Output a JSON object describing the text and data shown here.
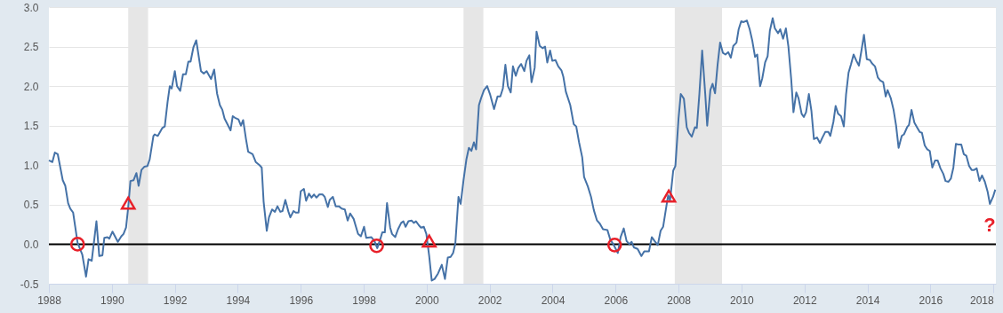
{
  "chart_data": {
    "type": "line",
    "xlim": [
      1988,
      2018.08
    ],
    "ylim": [
      -0.5,
      3.0
    ],
    "xticks": [
      1988,
      1990,
      1992,
      1994,
      1996,
      1998,
      2000,
      2002,
      2004,
      2006,
      2008,
      2010,
      2012,
      2014,
      2016,
      2018
    ],
    "yticks": [
      {
        "value": -0.5,
        "label": "-0.5"
      },
      {
        "value": 0,
        "label": "0.0"
      },
      {
        "value": 0.5,
        "label": "0.5"
      },
      {
        "value": 1,
        "label": "1.0"
      },
      {
        "value": 1.5,
        "label": "1.5"
      },
      {
        "value": 2,
        "label": "2.0"
      },
      {
        "value": 2.5,
        "label": "2.5"
      },
      {
        "value": 3,
        "label": "3.0"
      }
    ],
    "grid": "y",
    "series": [
      {
        "type": "line",
        "color": "#4572a7",
        "x": [
          1988.0,
          1988.11,
          1988.19,
          1988.28,
          1988.44,
          1988.52,
          1988.61,
          1988.68,
          1988.77,
          1988.91,
          1989.06,
          1989.18,
          1989.26,
          1989.36,
          1989.51,
          1989.6,
          1989.7,
          1989.76,
          1989.86,
          1989.92,
          1990.02,
          1990.19,
          1990.3,
          1990.37,
          1990.45,
          1990.52,
          1990.59,
          1990.69,
          1990.78,
          1990.85,
          1990.94,
          1991.03,
          1991.13,
          1991.2,
          1991.32,
          1991.36,
          1991.46,
          1991.6,
          1991.68,
          1991.77,
          1991.84,
          1991.9,
          1992.0,
          1992.07,
          1992.17,
          1992.26,
          1992.35,
          1992.43,
          1992.5,
          1992.59,
          1992.68,
          1992.83,
          1992.92,
          1993.01,
          1993.15,
          1993.25,
          1993.34,
          1993.43,
          1993.51,
          1993.58,
          1993.67,
          1993.77,
          1993.84,
          1993.91,
          1994.02,
          1994.1,
          1994.17,
          1994.26,
          1994.33,
          1994.47,
          1994.57,
          1994.69,
          1994.76,
          1994.82,
          1994.92,
          1994.99,
          1995.09,
          1995.18,
          1995.26,
          1995.35,
          1995.42,
          1995.51,
          1995.61,
          1995.67,
          1995.77,
          1995.84,
          1995.93,
          1996.0,
          1996.1,
          1996.17,
          1996.26,
          1996.34,
          1996.42,
          1996.5,
          1996.59,
          1996.69,
          1996.76,
          1996.86,
          1996.92,
          1997.02,
          1997.11,
          1997.21,
          1997.3,
          1997.4,
          1997.49,
          1997.57,
          1997.68,
          1997.82,
          1997.91,
          1998.01,
          1998.08,
          1998.24,
          1998.34,
          1998.43,
          1998.53,
          1998.59,
          1998.67,
          1998.74,
          1998.84,
          1998.9,
          1999.0,
          1999.09,
          1999.19,
          1999.26,
          1999.33,
          1999.42,
          1999.52,
          1999.59,
          1999.66,
          1999.75,
          1999.82,
          1999.91,
          1999.99,
          2000.08,
          2000.16,
          2000.25,
          2000.36,
          2000.48,
          2000.58,
          2000.67,
          2000.76,
          2000.84,
          2000.91,
          2001.01,
          2001.08,
          2001.17,
          2001.26,
          2001.34,
          2001.42,
          2001.5,
          2001.57,
          2001.66,
          2001.73,
          2001.82,
          2001.92,
          2002.01,
          2002.14,
          2002.25,
          2002.34,
          2002.42,
          2002.5,
          2002.58,
          2002.67,
          2002.74,
          2002.83,
          2002.91,
          2003.0,
          2003.1,
          2003.17,
          2003.26,
          2003.33,
          2003.43,
          2003.49,
          2003.59,
          2003.68,
          2003.76,
          2003.83,
          2003.92,
          2003.99,
          2004.09,
          2004.18,
          2004.28,
          2004.34,
          2004.42,
          2004.56,
          2004.67,
          2004.75,
          2004.84,
          2004.94,
          2005.0,
          2005.12,
          2005.22,
          2005.31,
          2005.41,
          2005.5,
          2005.6,
          2005.74,
          2005.83,
          2005.93,
          2006.07,
          2006.16,
          2006.26,
          2006.35,
          2006.44,
          2006.51,
          2006.58,
          2006.7,
          2006.82,
          2006.91,
          2007.06,
          2007.15,
          2007.24,
          2007.34,
          2007.43,
          2007.51,
          2007.57,
          2007.67,
          2007.73,
          2007.83,
          2007.9,
          2008.0,
          2008.07,
          2008.17,
          2008.26,
          2008.33,
          2008.42,
          2008.52,
          2008.58,
          2008.66,
          2008.75,
          2008.85,
          2008.91,
          2009.01,
          2009.08,
          2009.16,
          2009.24,
          2009.32,
          2009.41,
          2009.49,
          2009.58,
          2009.66,
          2009.74,
          2009.84,
          2009.91,
          2009.99,
          2010.07,
          2010.17,
          2010.26,
          2010.34,
          2010.43,
          2010.5,
          2010.59,
          2010.66,
          2010.75,
          2010.83,
          2010.9,
          2010.99,
          2011.06,
          2011.16,
          2011.23,
          2011.32,
          2011.41,
          2011.49,
          2011.58,
          2011.65,
          2011.74,
          2011.81,
          2011.91,
          2011.98,
          2012.05,
          2012.14,
          2012.22,
          2012.3,
          2012.4,
          2012.49,
          2012.57,
          2012.66,
          2012.76,
          2012.82,
          2012.92,
          2012.99,
          2013.07,
          2013.16,
          2013.25,
          2013.32,
          2013.4,
          2013.48,
          2013.56,
          2013.65,
          2013.73,
          2013.81,
          2013.89,
          2013.98,
          2014.08,
          2014.14,
          2014.24,
          2014.33,
          2014.41,
          2014.5,
          2014.58,
          2014.64,
          2014.74,
          2014.83,
          2014.91,
          2014.99,
          2015.09,
          2015.16,
          2015.26,
          2015.32,
          2015.4,
          2015.49,
          2015.59,
          2015.66,
          2015.73,
          2015.82,
          2015.9,
          2015.98,
          2016.06,
          2016.15,
          2016.23,
          2016.32,
          2016.41,
          2016.48,
          2016.57,
          2016.65,
          2016.73,
          2016.81,
          2016.9,
          2016.98,
          2017.06,
          2017.14,
          2017.23,
          2017.31,
          2017.39,
          2017.47,
          2017.56,
          2017.64,
          2017.73,
          2017.82,
          2017.89,
          2017.99,
          2018.06
        ],
        "values": [
          1.06,
          1.04,
          1.16,
          1.14,
          0.81,
          0.74,
          0.52,
          0.45,
          0.4,
          0.02,
          -0.13,
          -0.41,
          -0.19,
          -0.21,
          0.29,
          -0.15,
          -0.14,
          0.08,
          0.09,
          0.07,
          0.16,
          0.03,
          0.1,
          0.13,
          0.21,
          0.47,
          0.8,
          0.81,
          0.9,
          0.74,
          0.94,
          0.98,
          0.99,
          1.07,
          1.37,
          1.39,
          1.37,
          1.47,
          1.49,
          1.8,
          2.0,
          1.97,
          2.19,
          2.0,
          1.94,
          2.15,
          2.15,
          2.31,
          2.31,
          2.49,
          2.58,
          2.19,
          2.16,
          2.19,
          2.09,
          2.21,
          1.91,
          1.76,
          1.7,
          1.59,
          1.52,
          1.44,
          1.62,
          1.6,
          1.58,
          1.5,
          1.57,
          1.33,
          1.17,
          1.14,
          1.04,
          1.0,
          0.97,
          0.54,
          0.17,
          0.34,
          0.44,
          0.41,
          0.48,
          0.41,
          0.42,
          0.56,
          0.41,
          0.34,
          0.42,
          0.4,
          0.4,
          0.67,
          0.7,
          0.55,
          0.64,
          0.59,
          0.63,
          0.59,
          0.63,
          0.63,
          0.6,
          0.47,
          0.56,
          0.6,
          0.48,
          0.48,
          0.45,
          0.44,
          0.3,
          0.39,
          0.32,
          0.13,
          0.1,
          0.22,
          0.08,
          0.09,
          0.04,
          -0.05,
          0.07,
          0.15,
          0.15,
          0.52,
          0.21,
          0.13,
          0.09,
          0.19,
          0.27,
          0.29,
          0.22,
          0.29,
          0.3,
          0.27,
          0.29,
          0.24,
          0.21,
          0.22,
          0.13,
          -0.15,
          -0.46,
          -0.44,
          -0.37,
          -0.26,
          -0.44,
          -0.17,
          -0.16,
          -0.11,
          0.01,
          0.6,
          0.51,
          0.81,
          1.07,
          1.22,
          1.18,
          1.29,
          1.2,
          1.76,
          1.85,
          1.95,
          2.0,
          1.9,
          1.71,
          1.87,
          1.87,
          1.97,
          2.27,
          2.0,
          1.92,
          2.25,
          2.13,
          2.23,
          2.28,
          2.19,
          2.32,
          2.39,
          2.05,
          2.23,
          2.69,
          2.51,
          2.48,
          2.5,
          2.3,
          2.45,
          2.32,
          2.33,
          2.25,
          2.2,
          2.12,
          1.93,
          1.76,
          1.52,
          1.49,
          1.29,
          1.1,
          0.85,
          0.73,
          0.6,
          0.43,
          0.3,
          0.26,
          0.19,
          0.18,
          0.06,
          0.0,
          -0.11,
          0.09,
          0.2,
          0.04,
          0.0,
          0.03,
          -0.04,
          -0.06,
          -0.15,
          -0.09,
          -0.09,
          0.09,
          0.04,
          -0.01,
          0.17,
          0.22,
          0.37,
          0.62,
          0.55,
          0.93,
          0.99,
          1.59,
          1.9,
          1.84,
          1.48,
          1.41,
          1.36,
          1.48,
          1.47,
          1.89,
          2.45,
          1.89,
          1.5,
          1.95,
          2.03,
          1.91,
          2.27,
          2.55,
          2.42,
          2.4,
          2.43,
          2.36,
          2.51,
          2.55,
          2.72,
          2.82,
          2.81,
          2.83,
          2.72,
          2.58,
          2.37,
          2.4,
          2.0,
          2.1,
          2.3,
          2.38,
          2.7,
          2.86,
          2.73,
          2.67,
          2.72,
          2.6,
          2.73,
          2.5,
          2.08,
          1.67,
          1.92,
          1.85,
          1.65,
          1.61,
          1.67,
          1.9,
          1.69,
          1.33,
          1.35,
          1.28,
          1.35,
          1.42,
          1.42,
          1.37,
          1.55,
          1.75,
          1.65,
          1.62,
          1.49,
          1.89,
          2.17,
          2.28,
          2.4,
          2.32,
          2.26,
          2.45,
          2.65,
          2.34,
          2.33,
          2.29,
          2.25,
          2.11,
          2.07,
          2.05,
          1.87,
          1.95,
          1.85,
          1.7,
          1.5,
          1.22,
          1.37,
          1.39,
          1.48,
          1.51,
          1.7,
          1.54,
          1.47,
          1.42,
          1.41,
          1.25,
          1.2,
          1.18,
          0.97,
          1.06,
          1.06,
          0.96,
          0.89,
          0.8,
          0.79,
          0.83,
          0.97,
          1.27,
          1.26,
          1.26,
          1.14,
          1.12,
          0.99,
          0.94,
          0.94,
          0.96,
          0.8,
          0.87,
          0.79,
          0.66,
          0.51,
          0.6,
          0.69
        ]
      },
      {
        "type": "scatter",
        "color": "#e8212a",
        "marker": "circle",
        "x": [
          1988.91,
          1998.41,
          2005.97
        ],
        "values": [
          0,
          -0.02,
          -0.01
        ]
      },
      {
        "type": "scatter",
        "color": "#e8212a",
        "marker": "triangle",
        "x": [
          1990.52,
          2000.08,
          2007.69
        ],
        "values": [
          0.52,
          0.04,
          0.61
        ]
      }
    ],
    "ref_lines": [
      {
        "axis": "y",
        "value": 0,
        "color": "#000000"
      }
    ],
    "bands": [
      {
        "axis": "x",
        "from": 1990.52,
        "to": 1991.15,
        "color": "#e6e6e6"
      },
      {
        "axis": "x",
        "from": 2001.17,
        "to": 2001.8,
        "color": "#e6e6e6"
      },
      {
        "axis": "x",
        "from": 2007.88,
        "to": 2009.38,
        "color": "#e6e6e6"
      }
    ],
    "annotations": [
      "?"
    ]
  }
}
